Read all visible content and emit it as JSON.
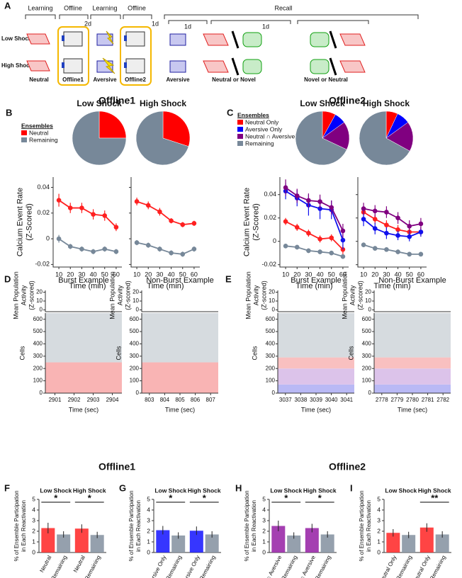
{
  "panel_letters": [
    "A",
    "B",
    "C",
    "D",
    "E",
    "F",
    "G",
    "H",
    "I"
  ],
  "panel_a": {
    "headers": [
      "Learning",
      "Offline",
      "Learning",
      "Offline",
      "Recall"
    ],
    "days": [
      "2d",
      "1d",
      "1d",
      "1d"
    ],
    "rows": [
      "Low Shock:",
      "High Shock:"
    ],
    "labels": [
      "Neutral",
      "Offline1",
      "Aversive",
      "Offline2",
      "Aversive",
      "Neutral or Novel",
      "Novel or Neutral"
    ]
  },
  "section_titles": [
    "Offline1",
    "Offline2",
    "Offline1",
    "Offline2"
  ],
  "chart_data": [
    {
      "type": "pie",
      "title": "Low Shock",
      "legend_title": "Ensembles",
      "categories": [
        "Neutral",
        "Remaining"
      ],
      "colors": [
        "#ff0000",
        "#778899"
      ],
      "values": [
        25,
        75
      ]
    },
    {
      "type": "pie",
      "title": "High Shock",
      "colors": [
        "#ff0000",
        "#778899"
      ],
      "values": [
        30,
        70
      ]
    },
    {
      "type": "line",
      "ylabel": [
        "Calcium Event Rate",
        "(Z-Scored)"
      ],
      "xlabel": "Time (min)",
      "x": [
        10,
        20,
        30,
        40,
        50,
        60
      ],
      "xlim": [
        5,
        65
      ],
      "xticks": [
        10,
        20,
        30,
        40,
        50,
        60
      ],
      "ylim": [
        -0.022,
        0.048
      ],
      "yticks": [
        -0.02,
        0,
        0.02,
        0.04
      ],
      "series": [
        {
          "color": "#ff2020",
          "values": [
            0.03,
            0.024,
            0.024,
            0.019,
            0.018,
            0.009
          ],
          "errors": [
            0.005,
            0.004,
            0.004,
            0.004,
            0.004,
            0.003
          ]
        },
        {
          "color": "#778899",
          "values": [
            0,
            -0.006,
            -0.008,
            -0.01,
            -0.008,
            -0.01
          ],
          "errors": [
            0.003,
            0.002,
            0.002,
            0.002,
            0.002,
            0.002
          ]
        }
      ]
    },
    {
      "type": "line",
      "xlabel": "Time (min)",
      "x": [
        10,
        20,
        30,
        40,
        50,
        60
      ],
      "xlim": [
        5,
        65
      ],
      "xticks": [
        10,
        20,
        30,
        40,
        50,
        60
      ],
      "ylim": [
        -0.022,
        0.048
      ],
      "yticks": [
        -0.02,
        0,
        0.02,
        0.04
      ],
      "series": [
        {
          "color": "#ff2020",
          "values": [
            0.029,
            0.026,
            0.021,
            0.014,
            0.011,
            0.012
          ],
          "errors": [
            0.003,
            0.003,
            0.003,
            0.002,
            0.002,
            0.002
          ]
        },
        {
          "color": "#778899",
          "values": [
            -0.003,
            -0.005,
            -0.008,
            -0.011,
            -0.012,
            -0.008
          ],
          "errors": [
            0.002,
            0.002,
            0.002,
            0.002,
            0.002,
            0.002
          ]
        }
      ]
    },
    {
      "type": "pie",
      "title": "Low Shock",
      "legend_title": "Ensembles",
      "categories": [
        "Neutral Only",
        "Aversive Only",
        "Neutral ∩ Aversive",
        "Remaining"
      ],
      "colors": [
        "#ff0000",
        "#0000ff",
        "#800080",
        "#778899"
      ],
      "values": [
        8,
        7,
        17,
        68
      ]
    },
    {
      "type": "pie",
      "title": "High Shock",
      "colors": [
        "#ff0000",
        "#0000ff",
        "#800080",
        "#778899"
      ],
      "values": [
        7,
        8,
        18,
        67
      ]
    },
    {
      "type": "line",
      "ylabel": [
        "Calcium Event Rate",
        "(Z-Scored)"
      ],
      "xlabel": "Time (min)",
      "x": [
        10,
        20,
        30,
        40,
        50,
        60
      ],
      "xlim": [
        5,
        65
      ],
      "xticks": [
        10,
        20,
        30,
        40,
        50,
        60
      ],
      "ylim": [
        -0.022,
        0.055
      ],
      "yticks": [
        -0.02,
        0,
        0.02,
        0.04
      ],
      "series": [
        {
          "color": "#ff2020",
          "values": [
            0.017,
            0.012,
            0.007,
            0.002,
            0.003,
            -0.007
          ],
          "errors": [
            0.003,
            0.003,
            0.003,
            0.003,
            0.003,
            0.004
          ]
        },
        {
          "color": "#1010ee",
          "values": [
            0.043,
            0.037,
            0.031,
            0.028,
            0.027,
            0.001
          ],
          "errors": [
            0.007,
            0.007,
            0.009,
            0.009,
            0.008,
            0.008
          ]
        },
        {
          "color": "#800080",
          "values": [
            0.046,
            0.039,
            0.035,
            0.034,
            0.029,
            0.009
          ],
          "errors": [
            0.007,
            0.006,
            0.006,
            0.006,
            0.006,
            0.006
          ]
        },
        {
          "color": "#778899",
          "values": [
            -0.004,
            -0.005,
            -0.008,
            -0.009,
            -0.01,
            -0.013
          ],
          "errors": [
            0.002,
            0.002,
            0.002,
            0.002,
            0.002,
            0.002
          ]
        }
      ]
    },
    {
      "type": "line",
      "xlabel": "Time (min)",
      "x": [
        10,
        20,
        30,
        40,
        50,
        60
      ],
      "xlim": [
        5,
        65
      ],
      "xticks": [
        10,
        20,
        30,
        40,
        50,
        60
      ],
      "ylim": [
        -0.022,
        0.055
      ],
      "yticks": [
        -0.02,
        0,
        0.02,
        0.04
      ],
      "series": [
        {
          "color": "#ff2020",
          "values": [
            0.025,
            0.019,
            0.014,
            0.01,
            0.008,
            0.008
          ],
          "errors": [
            0.004,
            0.004,
            0.004,
            0.004,
            0.004,
            0.004
          ]
        },
        {
          "color": "#1010ee",
          "values": [
            0.019,
            0.011,
            0.007,
            0.005,
            0.004,
            0.008
          ],
          "errors": [
            0.006,
            0.005,
            0.005,
            0.004,
            0.004,
            0.004
          ]
        },
        {
          "color": "#800080",
          "values": [
            0.028,
            0.026,
            0.025,
            0.02,
            0.013,
            0.015
          ],
          "errors": [
            0.005,
            0.005,
            0.005,
            0.005,
            0.005,
            0.005
          ]
        },
        {
          "color": "#778899",
          "values": [
            -0.003,
            -0.006,
            -0.007,
            -0.009,
            -0.011,
            -0.011
          ],
          "errors": [
            0.002,
            0.002,
            0.002,
            0.002,
            0.002,
            0.002
          ]
        }
      ]
    },
    {
      "type": "raster",
      "title": "Burst Example",
      "ylabel": [
        "Mean Population",
        "Activity",
        "(Z-scored)"
      ],
      "cells_label": "Cells",
      "xlabel": "Time (sec)",
      "xlim": [
        2900.5,
        2904.5
      ],
      "xticks": [
        2901,
        2902,
        2903,
        2904
      ],
      "ylim": [
        -2,
        22
      ],
      "yticks": [
        0,
        10,
        20
      ],
      "cells_ylim": [
        0,
        650
      ],
      "cells_yticks": [
        0,
        100,
        200,
        300,
        400,
        500,
        600
      ],
      "bands": [
        {
          "color": "#f9b4b4",
          "range": [
            0,
            250
          ]
        },
        {
          "color": "#d6dbdf",
          "range": [
            250,
            650
          ]
        }
      ]
    },
    {
      "type": "raster",
      "title": "Non-Burst Example",
      "ylabel": [
        "Mean Population",
        "Activity",
        "(Z-scored)"
      ],
      "cells_label": "Cells",
      "xlabel": "Time (sec)",
      "xlim": [
        802.5,
        807.5
      ],
      "xticks": [
        803,
        804,
        805,
        806,
        807
      ],
      "ylim": [
        -2,
        22
      ],
      "yticks": [
        0,
        10,
        20
      ],
      "cells_ylim": [
        0,
        650
      ],
      "cells_yticks": [
        0,
        100,
        200,
        300,
        400,
        500,
        600
      ],
      "bands": [
        {
          "color": "#f9b4b4",
          "range": [
            0,
            250
          ]
        },
        {
          "color": "#d6dbdf",
          "range": [
            250,
            650
          ]
        }
      ]
    },
    {
      "type": "raster",
      "title": "Burst Example",
      "ylabel": [
        "Mean Population",
        "Activity",
        "(Z-scored)"
      ],
      "cells_label": "Cells",
      "xlabel": "Time (sec)",
      "xlim": [
        3036.5,
        3041.5
      ],
      "xticks": [
        3037,
        3038,
        3039,
        3040,
        3041
      ],
      "ylim": [
        -2,
        22
      ],
      "yticks": [
        0,
        10,
        20
      ],
      "cells_ylim": [
        0,
        650
      ],
      "cells_yticks": [
        0,
        100,
        200,
        300,
        400,
        500,
        600
      ],
      "bands": [
        {
          "color": "#b9b9f5",
          "range": [
            0,
            70
          ]
        },
        {
          "color": "#dcc3ea",
          "range": [
            70,
            200
          ]
        },
        {
          "color": "#f9c0c0",
          "range": [
            200,
            290
          ]
        },
        {
          "color": "#d6dbdf",
          "range": [
            290,
            650
          ]
        }
      ]
    },
    {
      "type": "raster",
      "title": "Non-Burst Example",
      "ylabel": [
        "Mean Population",
        "Activity",
        "(Z-scored)"
      ],
      "cells_label": "Cells",
      "xlabel": "Time (sec)",
      "xlim": [
        2777.5,
        2782.5
      ],
      "xticks": [
        2778,
        2779,
        2780,
        2781,
        2782
      ],
      "ylim": [
        -2,
        22
      ],
      "yticks": [
        0,
        10,
        20
      ],
      "cells_ylim": [
        0,
        650
      ],
      "cells_yticks": [
        0,
        100,
        200,
        300,
        400,
        500,
        600
      ],
      "bands": [
        {
          "color": "#b9b9f5",
          "range": [
            0,
            70
          ]
        },
        {
          "color": "#dcc3ea",
          "range": [
            70,
            200
          ]
        },
        {
          "color": "#f9c0c0",
          "range": [
            200,
            290
          ]
        },
        {
          "color": "#d6dbdf",
          "range": [
            290,
            650
          ]
        }
      ]
    },
    {
      "type": "bar",
      "ylabel": [
        "% of Ensemble Participation",
        "in Each Reactivation"
      ],
      "categories": [
        "Neutral",
        "Remaining"
      ],
      "colors": [
        "#ff3030",
        "#8a96a4"
      ],
      "ylim": [
        0,
        5
      ],
      "yticks": [
        0,
        1,
        2,
        3,
        4,
        5
      ],
      "groups": [
        {
          "name": "Low Shock",
          "values": [
            2.3,
            1.7
          ],
          "errors": [
            0.5,
            0.3
          ],
          "sig": "*"
        },
        {
          "name": "High Shock",
          "values": [
            2.25,
            1.65
          ],
          "errors": [
            0.4,
            0.3
          ],
          "sig": "*"
        }
      ]
    },
    {
      "type": "bar",
      "ylabel": [
        "% of Ensemble Participation",
        "in Each Reactivation"
      ],
      "categories": [
        "Aversive Only",
        "Remaining"
      ],
      "colors": [
        "#2020ff",
        "#8a96a4"
      ],
      "ylim": [
        0,
        5
      ],
      "yticks": [
        0,
        1,
        2,
        3,
        4,
        5
      ],
      "groups": [
        {
          "name": "Low Shock",
          "values": [
            2.1,
            1.6
          ],
          "errors": [
            0.4,
            0.3
          ],
          "sig": "*"
        },
        {
          "name": "High Shock",
          "values": [
            2.05,
            1.7
          ],
          "errors": [
            0.4,
            0.3
          ],
          "sig": "*"
        }
      ]
    },
    {
      "type": "bar",
      "ylabel": [
        "% of Ensemble Participation",
        "in Each Reactivation"
      ],
      "categories": [
        "Neutral ∩ Aversive",
        "Remaining"
      ],
      "colors": [
        "#9a2aa8",
        "#8a96a4"
      ],
      "ylim": [
        0,
        5
      ],
      "yticks": [
        0,
        1,
        2,
        3,
        4,
        5
      ],
      "groups": [
        {
          "name": "Low Shock",
          "values": [
            2.5,
            1.6
          ],
          "errors": [
            0.5,
            0.3
          ],
          "sig": "*"
        },
        {
          "name": "High Shock",
          "values": [
            2.3,
            1.7
          ],
          "errors": [
            0.4,
            0.3
          ],
          "sig": "*"
        }
      ]
    },
    {
      "type": "bar",
      "ylabel": [
        "% of Ensemble Participation",
        "in Each Reactivation"
      ],
      "categories": [
        "Neutral Only",
        "Remaining"
      ],
      "colors": [
        "#ff3030",
        "#8a96a4"
      ],
      "ylim": [
        0,
        5
      ],
      "yticks": [
        0,
        1,
        2,
        3,
        4,
        5
      ],
      "groups": [
        {
          "name": "Low Shock",
          "values": [
            1.85,
            1.65
          ],
          "errors": [
            0.35,
            0.3
          ]
        },
        {
          "name": "High Shock",
          "values": [
            2.35,
            1.7
          ],
          "errors": [
            0.4,
            0.3
          ],
          "sig": "**"
        }
      ]
    }
  ]
}
